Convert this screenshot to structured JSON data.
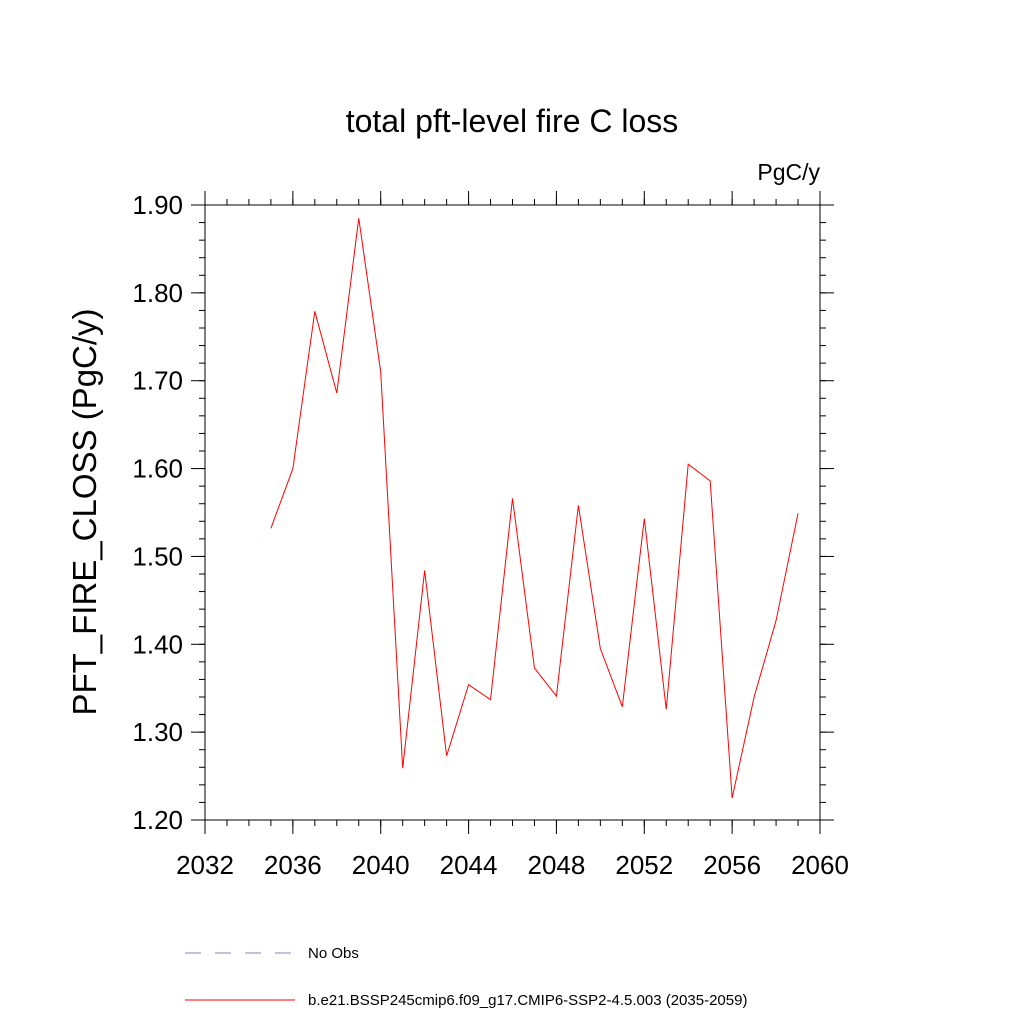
{
  "chart_data": {
    "type": "line",
    "title": "total pft-level fire C loss",
    "units": "PgC/y",
    "ylabel": "PFT_FIRE_CLOSS  (PgC/y)",
    "xlabel": "",
    "xlim": [
      2032,
      2060
    ],
    "ylim": [
      1.2,
      1.9
    ],
    "xticks": [
      "2032",
      "2036",
      "2040",
      "2044",
      "2048",
      "2052",
      "2056",
      "2060"
    ],
    "yticks": [
      "1.20",
      "1.30",
      "1.40",
      "1.50",
      "1.60",
      "1.70",
      "1.80",
      "1.90"
    ],
    "x_minor_step": 1,
    "y_minor_step": 0.02,
    "grid": false,
    "legend_position": "bottom-left",
    "series": [
      {
        "name": "b.e21.BSSP245cmip6.f09_g17.CMIP6-SSP2-4.5.003 (2035-2059)",
        "color": "#ff0000",
        "style": "solid",
        "x": [
          2035,
          2036,
          2037,
          2038,
          2039,
          2040,
          2041,
          2042,
          2043,
          2044,
          2045,
          2046,
          2047,
          2048,
          2049,
          2050,
          2051,
          2052,
          2053,
          2054,
          2055,
          2056,
          2057,
          2058,
          2059
        ],
        "values": [
          1.532,
          1.6,
          1.779,
          1.686,
          1.885,
          1.71,
          1.259,
          1.484,
          1.273,
          1.354,
          1.337,
          1.566,
          1.373,
          1.341,
          1.558,
          1.395,
          1.329,
          1.543,
          1.326,
          1.605,
          1.586,
          1.225,
          1.34,
          1.427,
          1.549
        ]
      }
    ],
    "legend": [
      {
        "label": "No Obs",
        "color": "#8080c0",
        "style": "dashed"
      },
      {
        "label": "b.e21.BSSP245cmip6.f09_g17.CMIP6-SSP2-4.5.003 (2035-2059)",
        "color": "#ff0000",
        "style": "solid"
      }
    ]
  }
}
